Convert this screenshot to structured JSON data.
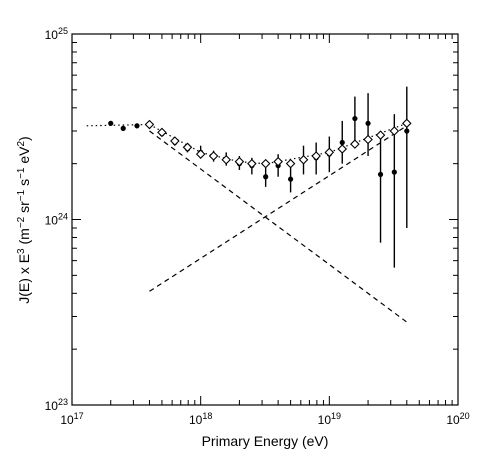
{
  "chart_data": {
    "type": "scatter",
    "title": "",
    "xlabel": "Primary Energy (eV)",
    "ylabel_parts": [
      "J(E) x E",
      "3",
      "  (m",
      "−2",
      " sr",
      "−1",
      " s",
      "−1",
      " eV",
      "2",
      ")"
    ],
    "x_scale": "log",
    "y_scale": "log",
    "xlim": [
      1e+17,
      1e+20
    ],
    "ylim": [
      1e+23,
      1e+25
    ],
    "grid": false,
    "x_ticks": [
      {
        "value": 1e+17,
        "base": "10",
        "exp": "17"
      },
      {
        "value": 1e+18,
        "base": "10",
        "exp": "18"
      },
      {
        "value": 1e+19,
        "base": "10",
        "exp": "19"
      },
      {
        "value": 1e+20,
        "base": "10",
        "exp": "20"
      }
    ],
    "y_ticks": [
      {
        "value": 1e+23,
        "base": "10",
        "exp": "23"
      },
      {
        "value": 1e+24,
        "base": "10",
        "exp": "24"
      },
      {
        "value": 1e+25,
        "base": "10",
        "exp": "25"
      }
    ],
    "series": [
      {
        "marker": "filled-circle",
        "points": [
          {
            "x": 2e+17,
            "y": 3.3e+24,
            "ylo": 3.2e+24,
            "yhi": 3.4e+24
          },
          {
            "x": 2.5e+17,
            "y": 3.1e+24,
            "ylo": 3e+24,
            "yhi": 3.2e+24
          },
          {
            "x": 3.2e+17,
            "y": 3.2e+24,
            "ylo": 3.1e+24,
            "yhi": 3.3e+24
          },
          {
            "x": 4e+17,
            "y": 3.25e+24,
            "ylo": 3.15e+24,
            "yhi": 3.35e+24
          },
          {
            "x": 5e+17,
            "y": 2.9e+24,
            "ylo": 2.8e+24,
            "yhi": 3e+24
          },
          {
            "x": 6.3e+17,
            "y": 2.6e+24,
            "ylo": 2.5e+24,
            "yhi": 2.7e+24
          },
          {
            "x": 7.9e+17,
            "y": 2.4e+24,
            "ylo": 2.3e+24,
            "yhi": 2.5e+24
          },
          {
            "x": 1e+18,
            "y": 2.3e+24,
            "ylo": 2.2e+24,
            "yhi": 2.5e+24
          },
          {
            "x": 1.26e+18,
            "y": 2.2e+24,
            "ylo": 2.05e+24,
            "yhi": 2.35e+24
          },
          {
            "x": 1.58e+18,
            "y": 2.1e+24,
            "ylo": 1.95e+24,
            "yhi": 2.3e+24
          },
          {
            "x": 2e+18,
            "y": 2e+24,
            "ylo": 1.85e+24,
            "yhi": 2.2e+24
          },
          {
            "x": 2.5e+18,
            "y": 1.95e+24,
            "ylo": 1.75e+24,
            "yhi": 2.15e+24
          },
          {
            "x": 3.2e+18,
            "y": 1.7e+24,
            "ylo": 1.5e+24,
            "yhi": 1.9e+24
          },
          {
            "x": 4e+18,
            "y": 1.95e+24,
            "ylo": 1.7e+24,
            "yhi": 2.25e+24
          },
          {
            "x": 5e+18,
            "y": 1.65e+24,
            "ylo": 1.4e+24,
            "yhi": 1.95e+24
          },
          {
            "x": 6.3e+18,
            "y": 2.1e+24,
            "ylo": 1.75e+24,
            "yhi": 2.5e+24
          },
          {
            "x": 7.9e+18,
            "y": 2.15e+24,
            "ylo": 1.75e+24,
            "yhi": 2.6e+24
          },
          {
            "x": 1e+19,
            "y": 2.25e+24,
            "ylo": 1.8e+24,
            "yhi": 2.8e+24
          },
          {
            "x": 1.26e+19,
            "y": 2.6e+24,
            "ylo": 2e+24,
            "yhi": 3.4e+24
          },
          {
            "x": 1.58e+19,
            "y": 3.5e+24,
            "ylo": 2.5e+24,
            "yhi": 4.6e+24
          },
          {
            "x": 2e+19,
            "y": 3.3e+24,
            "ylo": 2.2e+24,
            "yhi": 4.8e+24
          },
          {
            "x": 2.5e+19,
            "y": 1.75e+24,
            "ylo": 7.5e+23,
            "yhi": 3e+24
          },
          {
            "x": 3.2e+19,
            "y": 1.8e+24,
            "ylo": 5.5e+23,
            "yhi": 3.7e+24
          },
          {
            "x": 4e+19,
            "y": 3e+24,
            "ylo": 9e+23,
            "yhi": 5.2e+24
          }
        ]
      },
      {
        "marker": "open-diamond",
        "points": [
          {
            "x": 4e+17,
            "y": 3.25e+24
          },
          {
            "x": 5e+17,
            "y": 2.95e+24
          },
          {
            "x": 6.3e+17,
            "y": 2.65e+24
          },
          {
            "x": 7.9e+17,
            "y": 2.45e+24
          },
          {
            "x": 1e+18,
            "y": 2.25e+24
          },
          {
            "x": 1.26e+18,
            "y": 2.2e+24
          },
          {
            "x": 1.58e+18,
            "y": 2.1e+24
          },
          {
            "x": 2e+18,
            "y": 2.05e+24
          },
          {
            "x": 2.5e+18,
            "y": 2e+24
          },
          {
            "x": 3.2e+18,
            "y": 2e+24
          },
          {
            "x": 4e+18,
            "y": 2.05e+24
          },
          {
            "x": 5e+18,
            "y": 2e+24
          },
          {
            "x": 6.3e+18,
            "y": 2.1e+24
          },
          {
            "x": 7.9e+18,
            "y": 2.2e+24
          },
          {
            "x": 1e+19,
            "y": 2.3e+24
          },
          {
            "x": 1.26e+19,
            "y": 2.4e+24
          },
          {
            "x": 1.58e+19,
            "y": 2.55e+24
          },
          {
            "x": 2e+19,
            "y": 2.7e+24
          },
          {
            "x": 2.5e+19,
            "y": 2.85e+24
          },
          {
            "x": 3.2e+19,
            "y": 3e+24
          },
          {
            "x": 4e+19,
            "y": 3.3e+24
          }
        ]
      }
    ],
    "lines": [
      {
        "style": "dotted",
        "points": [
          [
            1.3e+17,
            3.2e+24
          ],
          [
            4e+17,
            3.25e+24
          ],
          [
            1e+18,
            2.3e+24
          ],
          [
            2e+18,
            2.05e+24
          ],
          [
            3.2e+18,
            2e+24
          ],
          [
            1e+19,
            2.3e+24
          ],
          [
            4e+19,
            3.3e+24
          ]
        ]
      },
      {
        "style": "dashed",
        "points": [
          [
            4e+17,
            3e+24
          ],
          [
            4e+19,
            2.8e+23
          ]
        ]
      },
      {
        "style": "dashed",
        "points": [
          [
            4e+17,
            4.1e+23
          ],
          [
            4e+19,
            3.2e+24
          ]
        ]
      }
    ]
  }
}
